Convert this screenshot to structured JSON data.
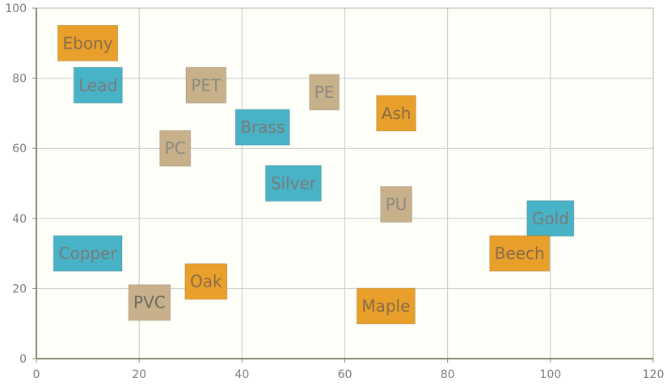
{
  "chart_data": {
    "type": "scatter",
    "title": "",
    "xlabel": "",
    "ylabel": "",
    "xlim": [
      0,
      120
    ],
    "ylim": [
      0,
      100
    ],
    "x_ticks": [
      0,
      20,
      40,
      60,
      80,
      100,
      120
    ],
    "y_ticks": [
      0,
      20,
      40,
      60,
      80,
      100
    ],
    "grid": true,
    "colors": {
      "orange": "#e8a02a",
      "teal": "#48b2c6",
      "tan": "#c8b18a",
      "plot_background": "#fffffa",
      "grid": "#c8c8c8",
      "axis": "#8c8870"
    },
    "points": [
      {
        "label": "Ebony",
        "x": 10,
        "y": 90,
        "color": "orange",
        "text_color": "#8a6a4a"
      },
      {
        "label": "Lead",
        "x": 12,
        "y": 78,
        "color": "teal",
        "text_color": "#7a7a7a"
      },
      {
        "label": "PET",
        "x": 33,
        "y": 78,
        "color": "tan",
        "text_color": "#8a8a80"
      },
      {
        "label": "PE",
        "x": 56,
        "y": 76,
        "color": "tan",
        "text_color": "#8a8a80"
      },
      {
        "label": "Ash",
        "x": 70,
        "y": 70,
        "color": "orange",
        "text_color": "#8a6a4a"
      },
      {
        "label": "Brass",
        "x": 44,
        "y": 66,
        "color": "teal",
        "text_color": "#7a7a7a"
      },
      {
        "label": "PC",
        "x": 27,
        "y": 60,
        "color": "tan",
        "text_color": "#8a8a80"
      },
      {
        "label": "Silver",
        "x": 50,
        "y": 50,
        "color": "teal",
        "text_color": "#7a7a7a"
      },
      {
        "label": "PU",
        "x": 70,
        "y": 44,
        "color": "tan",
        "text_color": "#8a8a80"
      },
      {
        "label": "Gold",
        "x": 100,
        "y": 40,
        "color": "teal",
        "text_color": "#7a7a7a"
      },
      {
        "label": "Copper",
        "x": 10,
        "y": 30,
        "color": "teal",
        "text_color": "#7a7a7a"
      },
      {
        "label": "Beech",
        "x": 94,
        "y": 30,
        "color": "orange",
        "text_color": "#8a6a4a"
      },
      {
        "label": "Oak",
        "x": 33,
        "y": 22,
        "color": "orange",
        "text_color": "#8a6a4a"
      },
      {
        "label": "PVC",
        "x": 22,
        "y": 16,
        "color": "tan",
        "text_color": "#6a6a60"
      },
      {
        "label": "Maple",
        "x": 68,
        "y": 15,
        "color": "orange",
        "text_color": "#8a6a4a"
      }
    ]
  }
}
